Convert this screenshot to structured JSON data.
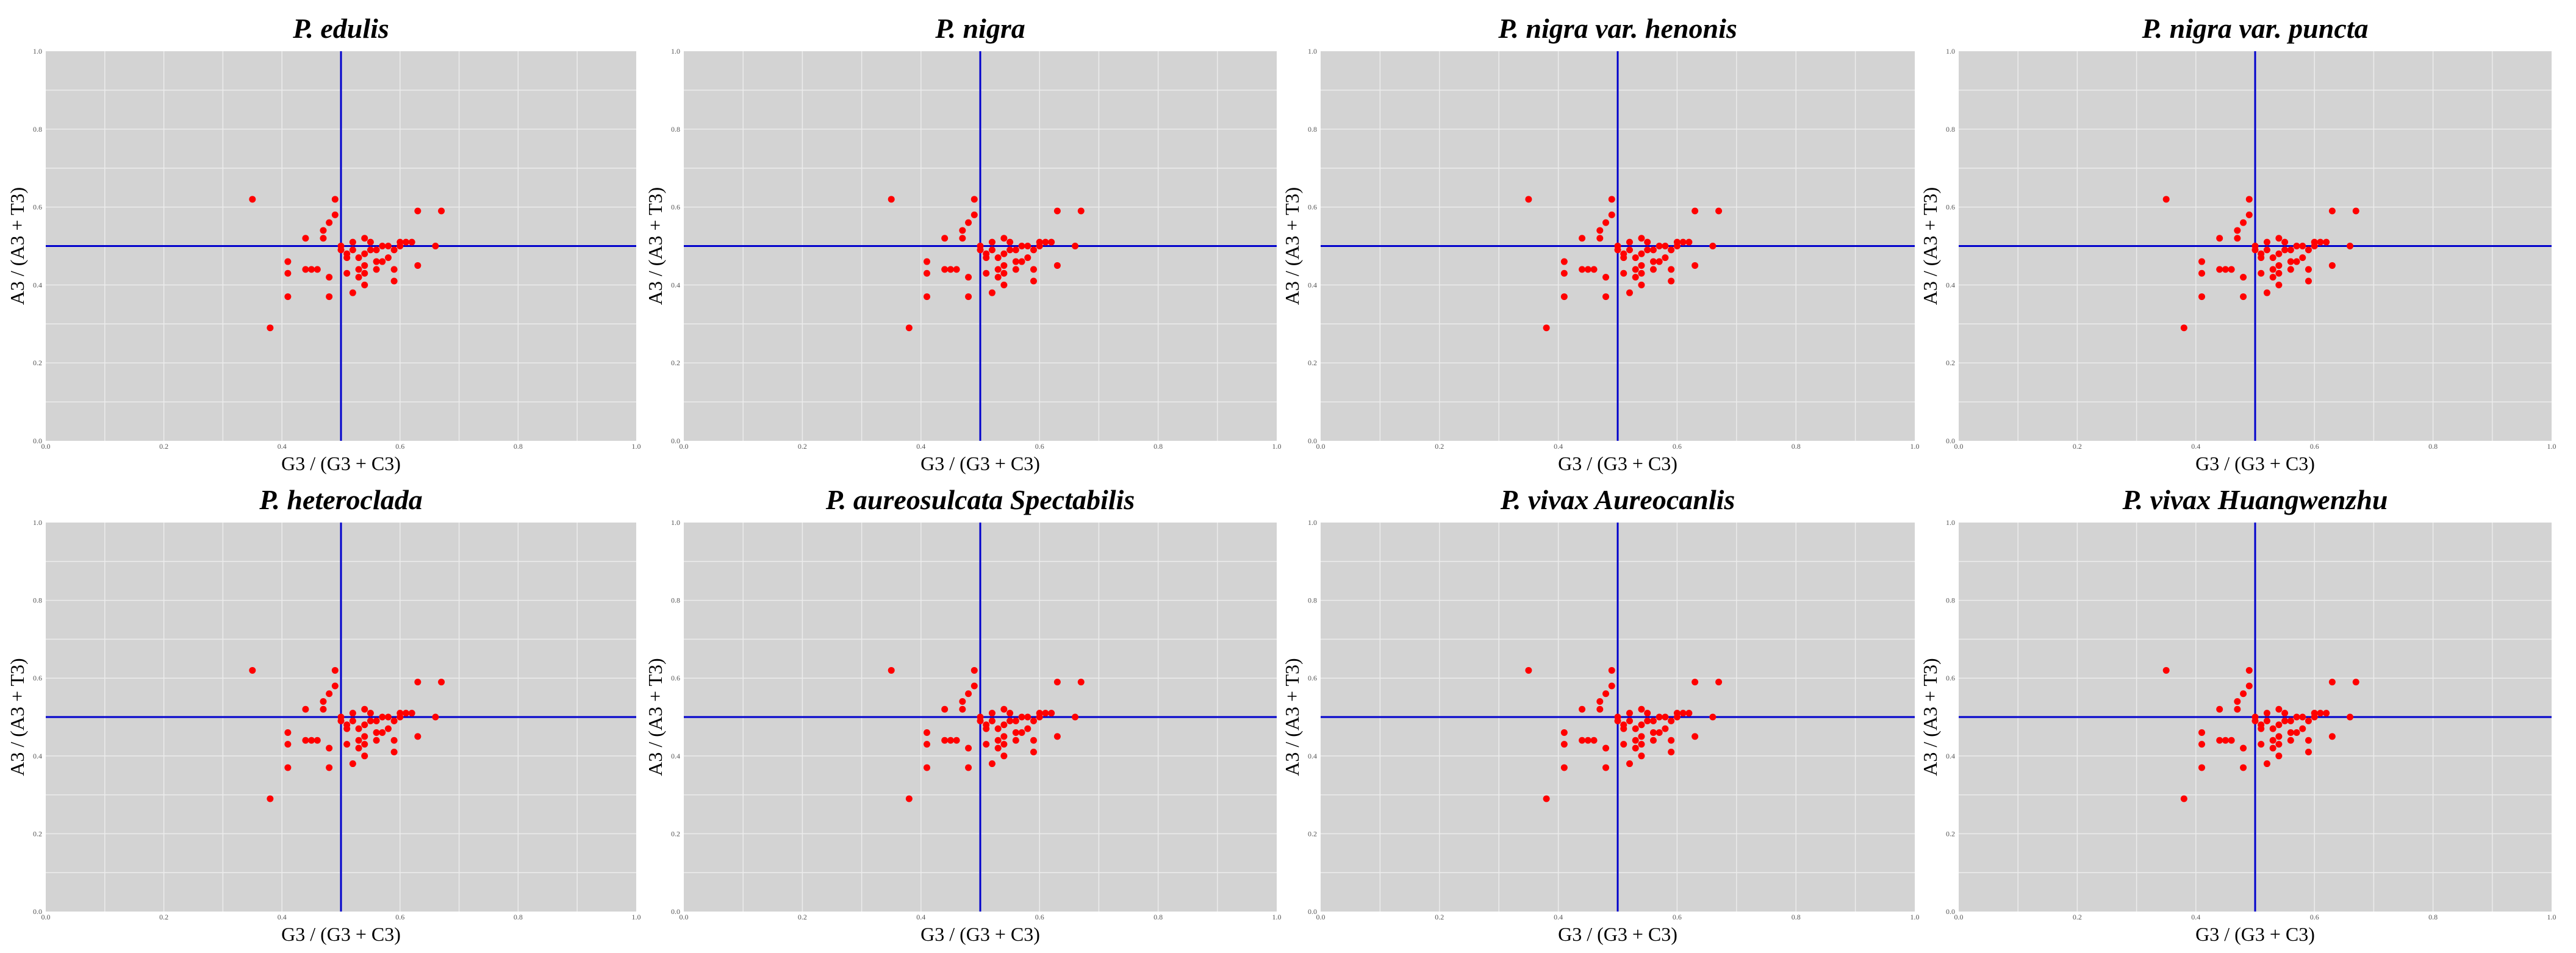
{
  "figure": {
    "description_free": true
  },
  "colors": {
    "panel_bg": "#d3d3d3",
    "grid": "#ececec",
    "point": "#ff0000",
    "refline": "#0000cc"
  },
  "chart_data": [
    {
      "type": "scatter",
      "title": "P. edulis",
      "xlabel": "G3 / (G3 + C3)",
      "ylabel": "A3 / (A3 + T3)",
      "xlim": [
        0,
        1
      ],
      "ylim": [
        0,
        1
      ],
      "xticks": [
        "0.0",
        "0.2",
        "0.4",
        "0.6",
        "0.8",
        "1.0"
      ],
      "yticks": [
        "0.0",
        "0.2",
        "0.4",
        "0.6",
        "0.8",
        "1.0"
      ],
      "ref_x": 0.5,
      "ref_y": 0.5,
      "series": "pts"
    },
    {
      "type": "scatter",
      "title": "P. nigra",
      "xlabel": "G3 / (G3 + C3)",
      "ylabel": "A3 / (A3 + T3)",
      "xlim": [
        0,
        1
      ],
      "ylim": [
        0,
        1
      ],
      "xticks": [
        "0.0",
        "0.2",
        "0.4",
        "0.6",
        "0.8",
        "1.0"
      ],
      "yticks": [
        "0.0",
        "0.2",
        "0.4",
        "0.6",
        "0.8",
        "1.0"
      ],
      "ref_x": 0.5,
      "ref_y": 0.5,
      "series": "pts"
    },
    {
      "type": "scatter",
      "title": "P. nigra var. henonis",
      "xlabel": "G3 / (G3 + C3)",
      "ylabel": "A3 / (A3 + T3)",
      "xlim": [
        0,
        1
      ],
      "ylim": [
        0,
        1
      ],
      "xticks": [
        "0.0",
        "0.2",
        "0.4",
        "0.6",
        "0.8",
        "1.0"
      ],
      "yticks": [
        "0.0",
        "0.2",
        "0.4",
        "0.6",
        "0.8",
        "1.0"
      ],
      "ref_x": 0.5,
      "ref_y": 0.5,
      "series": "pts"
    },
    {
      "type": "scatter",
      "title": "P. nigra var. puncta",
      "xlabel": "G3 / (G3 + C3)",
      "ylabel": "A3 / (A3 + T3)",
      "xlim": [
        0,
        1
      ],
      "ylim": [
        0,
        1
      ],
      "xticks": [
        "0.0",
        "0.2",
        "0.4",
        "0.6",
        "0.8",
        "1.0"
      ],
      "yticks": [
        "0.0",
        "0.2",
        "0.4",
        "0.6",
        "0.8",
        "1.0"
      ],
      "ref_x": 0.5,
      "ref_y": 0.5,
      "series": "pts"
    },
    {
      "type": "scatter",
      "title": "P. heteroclada",
      "xlabel": "G3 / (G3 + C3)",
      "ylabel": "A3 / (A3 + T3)",
      "xlim": [
        0,
        1
      ],
      "ylim": [
        0,
        1
      ],
      "xticks": [
        "0.0",
        "0.2",
        "0.4",
        "0.6",
        "0.8",
        "1.0"
      ],
      "yticks": [
        "0.0",
        "0.2",
        "0.4",
        "0.6",
        "0.8",
        "1.0"
      ],
      "ref_x": 0.5,
      "ref_y": 0.5,
      "series": "pts"
    },
    {
      "type": "scatter",
      "title": "P. aureosulcata Spectabilis",
      "xlabel": "G3 / (G3 + C3)",
      "ylabel": "A3 / (A3 + T3)",
      "xlim": [
        0,
        1
      ],
      "ylim": [
        0,
        1
      ],
      "xticks": [
        "0.0",
        "0.2",
        "0.4",
        "0.6",
        "0.8",
        "1.0"
      ],
      "yticks": [
        "0.0",
        "0.2",
        "0.4",
        "0.6",
        "0.8",
        "1.0"
      ],
      "ref_x": 0.5,
      "ref_y": 0.5,
      "series": "pts"
    },
    {
      "type": "scatter",
      "title": "P. vivax Aureocanlis",
      "xlabel": "G3 / (G3 + C3)",
      "ylabel": "A3 / (A3 + T3)",
      "xlim": [
        0,
        1
      ],
      "ylim": [
        0,
        1
      ],
      "xticks": [
        "0.0",
        "0.2",
        "0.4",
        "0.6",
        "0.8",
        "1.0"
      ],
      "yticks": [
        "0.0",
        "0.2",
        "0.4",
        "0.6",
        "0.8",
        "1.0"
      ],
      "ref_x": 0.5,
      "ref_y": 0.5,
      "series": "pts"
    },
    {
      "type": "scatter",
      "title": "P. vivax Huangwenzhu",
      "xlabel": "G3 / (G3 + C3)",
      "ylabel": "A3 / (A3 + T3)",
      "xlim": [
        0,
        1
      ],
      "ylim": [
        0,
        1
      ],
      "xticks": [
        "0.0",
        "0.2",
        "0.4",
        "0.6",
        "0.8",
        "1.0"
      ],
      "yticks": [
        "0.0",
        "0.2",
        "0.4",
        "0.6",
        "0.8",
        "1.0"
      ],
      "ref_x": 0.5,
      "ref_y": 0.5,
      "series": "pts"
    }
  ],
  "points": [
    [
      0.35,
      0.62
    ],
    [
      0.38,
      0.29
    ],
    [
      0.41,
      0.37
    ],
    [
      0.41,
      0.43
    ],
    [
      0.41,
      0.46
    ],
    [
      0.44,
      0.44
    ],
    [
      0.44,
      0.52
    ],
    [
      0.45,
      0.44
    ],
    [
      0.46,
      0.44
    ],
    [
      0.47,
      0.52
    ],
    [
      0.47,
      0.54
    ],
    [
      0.48,
      0.42
    ],
    [
      0.48,
      0.56
    ],
    [
      0.48,
      0.37
    ],
    [
      0.49,
      0.62
    ],
    [
      0.49,
      0.58
    ],
    [
      0.5,
      0.5
    ],
    [
      0.5,
      0.49
    ],
    [
      0.51,
      0.48
    ],
    [
      0.51,
      0.47
    ],
    [
      0.51,
      0.43
    ],
    [
      0.52,
      0.51
    ],
    [
      0.52,
      0.49
    ],
    [
      0.52,
      0.38
    ],
    [
      0.53,
      0.47
    ],
    [
      0.53,
      0.44
    ],
    [
      0.53,
      0.42
    ],
    [
      0.54,
      0.52
    ],
    [
      0.54,
      0.48
    ],
    [
      0.54,
      0.45
    ],
    [
      0.54,
      0.43
    ],
    [
      0.54,
      0.4
    ],
    [
      0.55,
      0.49
    ],
    [
      0.55,
      0.51
    ],
    [
      0.56,
      0.49
    ],
    [
      0.56,
      0.46
    ],
    [
      0.56,
      0.44
    ],
    [
      0.57,
      0.5
    ],
    [
      0.57,
      0.46
    ],
    [
      0.58,
      0.5
    ],
    [
      0.58,
      0.47
    ],
    [
      0.59,
      0.49
    ],
    [
      0.59,
      0.44
    ],
    [
      0.59,
      0.41
    ],
    [
      0.6,
      0.51
    ],
    [
      0.6,
      0.5
    ],
    [
      0.61,
      0.51
    ],
    [
      0.62,
      0.51
    ],
    [
      0.63,
      0.59
    ],
    [
      0.63,
      0.45
    ],
    [
      0.66,
      0.5
    ],
    [
      0.67,
      0.59
    ]
  ]
}
